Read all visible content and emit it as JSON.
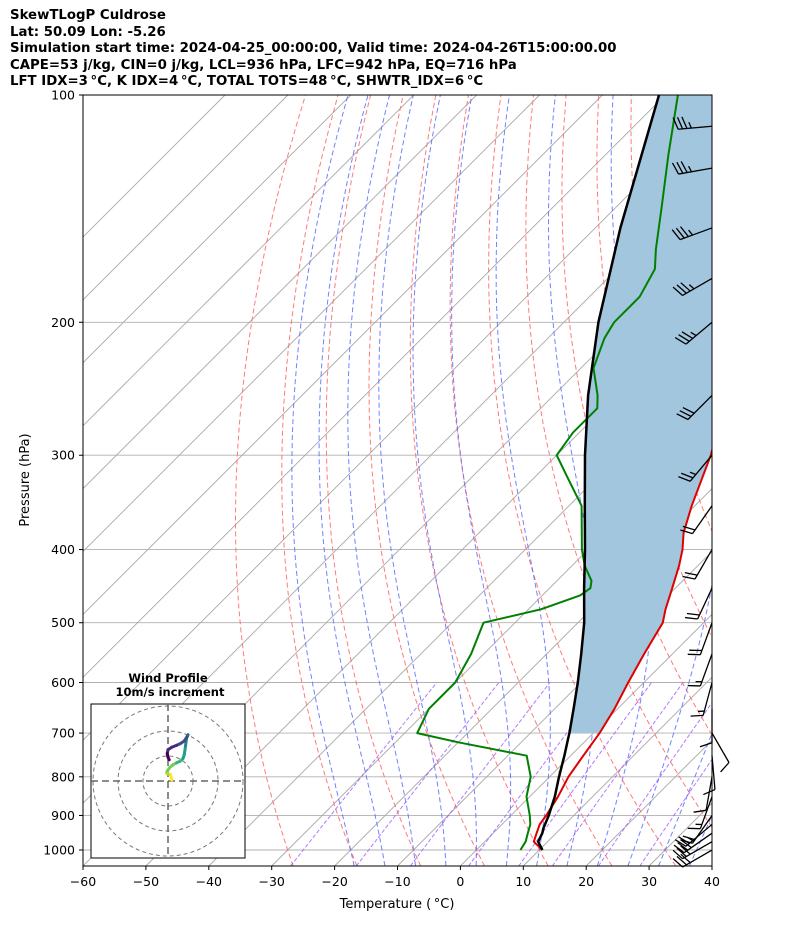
{
  "header": {
    "line1": "SkewTLogP Culdrose",
    "line2": "Lat: 50.09   Lon: -5.26",
    "line3": "Simulation start time: 2024-04-25_00:00:00, Valid time: 2024-04-26T15:00:00.00",
    "line4": "CAPE=53 j/kg, CIN=0 j/kg, LCL=936 hPa, LFC=942 hPa, EQ=716 hPa",
    "line5": "LFT IDX=3 °C, K IDX=4 °C, TOTAL TOTS=48 °C, SHWTR_IDX=6 °C"
  },
  "chart_data": {
    "type": "skewt",
    "xlabel": "Temperature ( °C)",
    "ylabel": "Pressure (hPa)",
    "xlim": [
      -60,
      40
    ],
    "ylim": [
      1050,
      100
    ],
    "y_scale": "log",
    "grid": true,
    "x_ticks": [
      -60,
      -50,
      -40,
      -30,
      -20,
      -10,
      0,
      10,
      20,
      30,
      40
    ],
    "x_tick_labels": [
      "−60",
      "−50",
      "−40",
      "−30",
      "−20",
      "−10",
      "0",
      "10",
      "20",
      "30",
      "40"
    ],
    "y_ticks": [
      1000,
      900,
      800,
      700,
      600,
      500,
      400,
      300,
      200,
      100
    ],
    "y_tick_labels": [
      "1000",
      "900",
      "800",
      "700",
      "600",
      "500",
      "400",
      "300",
      "200",
      "100"
    ],
    "isotherms_C": [
      -160,
      -150,
      -140,
      -130,
      -120,
      -110,
      -100,
      -90,
      -80,
      -70,
      -60,
      -50,
      -40,
      -30,
      -20,
      -10,
      0,
      10,
      20,
      30,
      40
    ],
    "dry_adiabats_C": [
      -30,
      -20,
      -10,
      0,
      10,
      20,
      30,
      40,
      50,
      60,
      70,
      80
    ],
    "moist_adiabats_C": [
      -20,
      -15,
      -10,
      -5,
      0,
      5,
      10,
      15,
      20,
      25,
      30,
      35
    ],
    "series": [
      {
        "name": "temperature",
        "color": "#e00000",
        "points": [
          [
            1000,
            10.5
          ],
          [
            975,
            7.8
          ],
          [
            950,
            6.9
          ],
          [
            925,
            6.0
          ],
          [
            900,
            5.6
          ],
          [
            850,
            4.5
          ],
          [
            800,
            3.0
          ],
          [
            750,
            2.0
          ],
          [
            700,
            1.0
          ],
          [
            650,
            -0.5
          ],
          [
            600,
            -2.5
          ],
          [
            550,
            -4.5
          ],
          [
            500,
            -6.5
          ],
          [
            480,
            -8.2
          ],
          [
            450,
            -10.5
          ],
          [
            420,
            -13
          ],
          [
            400,
            -15
          ],
          [
            380,
            -17.5
          ],
          [
            350,
            -20.5
          ],
          [
            300,
            -25.5
          ],
          [
            250,
            -32.5
          ],
          [
            200,
            -41
          ],
          [
            180,
            -44.5
          ],
          [
            160,
            -48
          ],
          [
            140,
            -51
          ],
          [
            120,
            -52.5
          ],
          [
            100,
            -53.5
          ]
        ]
      },
      {
        "name": "dewpoint",
        "color": "#008000",
        "points": [
          [
            1000,
            7.0
          ],
          [
            975,
            6.5
          ],
          [
            950,
            5.5
          ],
          [
            925,
            4.5
          ],
          [
            900,
            3.0
          ],
          [
            850,
            -0.5
          ],
          [
            800,
            -3.0
          ],
          [
            750,
            -7.0
          ],
          [
            720,
            -20
          ],
          [
            700,
            -28
          ],
          [
            650,
            -30
          ],
          [
            600,
            -30
          ],
          [
            550,
            -32
          ],
          [
            500,
            -35
          ],
          [
            480,
            -28
          ],
          [
            460,
            -24
          ],
          [
            450,
            -23.5
          ],
          [
            440,
            -24.5
          ],
          [
            420,
            -28
          ],
          [
            400,
            -31
          ],
          [
            350,
            -38
          ],
          [
            320,
            -45
          ],
          [
            300,
            -50
          ],
          [
            280,
            -51
          ],
          [
            260,
            -51
          ],
          [
            250,
            -53
          ],
          [
            230,
            -58
          ],
          [
            210,
            -61
          ],
          [
            200,
            -62
          ],
          [
            185,
            -62
          ],
          [
            170,
            -64
          ],
          [
            160,
            -67
          ],
          [
            140,
            -73
          ],
          [
            120,
            -80
          ],
          [
            100,
            -88
          ]
        ]
      },
      {
        "name": "parcel",
        "color": "#000000",
        "points": [
          [
            1000,
            10.5
          ],
          [
            975,
            8.5
          ],
          [
            950,
            7.8
          ],
          [
            936,
            7.2
          ],
          [
            900,
            6.0
          ],
          [
            850,
            4.0
          ],
          [
            800,
            1.5
          ],
          [
            750,
            -1.0
          ],
          [
            716,
            -2.9
          ],
          [
            700,
            -3.8
          ],
          [
            650,
            -7.0
          ],
          [
            600,
            -10.5
          ],
          [
            550,
            -14.5
          ],
          [
            500,
            -19.0
          ],
          [
            450,
            -24.5
          ],
          [
            400,
            -30.5
          ],
          [
            350,
            -37.5
          ],
          [
            300,
            -45.5
          ],
          [
            250,
            -54.5
          ],
          [
            200,
            -64.5
          ],
          [
            150,
            -76
          ],
          [
            100,
            -91
          ]
        ]
      }
    ],
    "wind_barbs": [
      {
        "p": 1000,
        "speed_kt": 30,
        "dir_deg": 240
      },
      {
        "p": 975,
        "speed_kt": 30,
        "dir_deg": 240
      },
      {
        "p": 950,
        "speed_kt": 30,
        "dir_deg": 235
      },
      {
        "p": 925,
        "speed_kt": 25,
        "dir_deg": 230
      },
      {
        "p": 900,
        "speed_kt": 20,
        "dir_deg": 215
      },
      {
        "p": 850,
        "speed_kt": 15,
        "dir_deg": 200
      },
      {
        "p": 800,
        "speed_kt": 10,
        "dir_deg": 190
      },
      {
        "p": 750,
        "speed_kt": 10,
        "dir_deg": 175
      },
      {
        "p": 700,
        "speed_kt": 10,
        "dir_deg": 150
      },
      {
        "p": 650,
        "speed_kt": 10,
        "dir_deg": 180
      },
      {
        "p": 600,
        "speed_kt": 15,
        "dir_deg": 195
      },
      {
        "p": 550,
        "speed_kt": 15,
        "dir_deg": 200
      },
      {
        "p": 500,
        "speed_kt": 20,
        "dir_deg": 200
      },
      {
        "p": 450,
        "speed_kt": 20,
        "dir_deg": 205
      },
      {
        "p": 400,
        "speed_kt": 20,
        "dir_deg": 210
      },
      {
        "p": 350,
        "speed_kt": 20,
        "dir_deg": 215
      },
      {
        "p": 300,
        "speed_kt": 25,
        "dir_deg": 220
      },
      {
        "p": 250,
        "speed_kt": 30,
        "dir_deg": 225
      },
      {
        "p": 200,
        "speed_kt": 35,
        "dir_deg": 230
      },
      {
        "p": 175,
        "speed_kt": 35,
        "dir_deg": 240
      },
      {
        "p": 150,
        "speed_kt": 35,
        "dir_deg": 250
      },
      {
        "p": 125,
        "speed_kt": 35,
        "dir_deg": 260
      },
      {
        "p": 110,
        "speed_kt": 35,
        "dir_deg": 265
      }
    ],
    "hodograph": {
      "title": "Wind Profile",
      "subtitle": "10m/s increment",
      "rings_ms": [
        10,
        20,
        30
      ],
      "u_ms": [
        1.5,
        1.3,
        1.0,
        0.2,
        -0.4,
        -0.6,
        -0.3,
        0.8,
        2.0,
        3.5,
        5.0,
        6.0,
        6.5,
        6.8,
        7.0,
        7.2,
        7.4,
        7.8,
        8.0,
        7.5,
        6.5,
        5.0,
        3.5,
        1.5,
        0.0,
        -0.3,
        0.0,
        0.5
      ],
      "v_ms": [
        0.3,
        1.5,
        2.5,
        2.8,
        3.0,
        3.2,
        4.0,
        5.5,
        6.5,
        7.3,
        8.0,
        9.0,
        10.5,
        12.5,
        14.0,
        15.5,
        17.0,
        18.0,
        18.5,
        17.5,
        16.0,
        15.0,
        14.3,
        13.5,
        12.5,
        11.0,
        9.5,
        8.5
      ]
    }
  },
  "colors": {
    "temperature": "#e00000",
    "dewpoint": "#008000",
    "parcel": "#000000",
    "cape_fill": "#a3c6df",
    "isotherm": "#a8a8a8",
    "dry_adiabat": "#ff6b6b",
    "moist_adiabat": "#5b6bff",
    "mixing_ratio": "#9b4dff"
  }
}
